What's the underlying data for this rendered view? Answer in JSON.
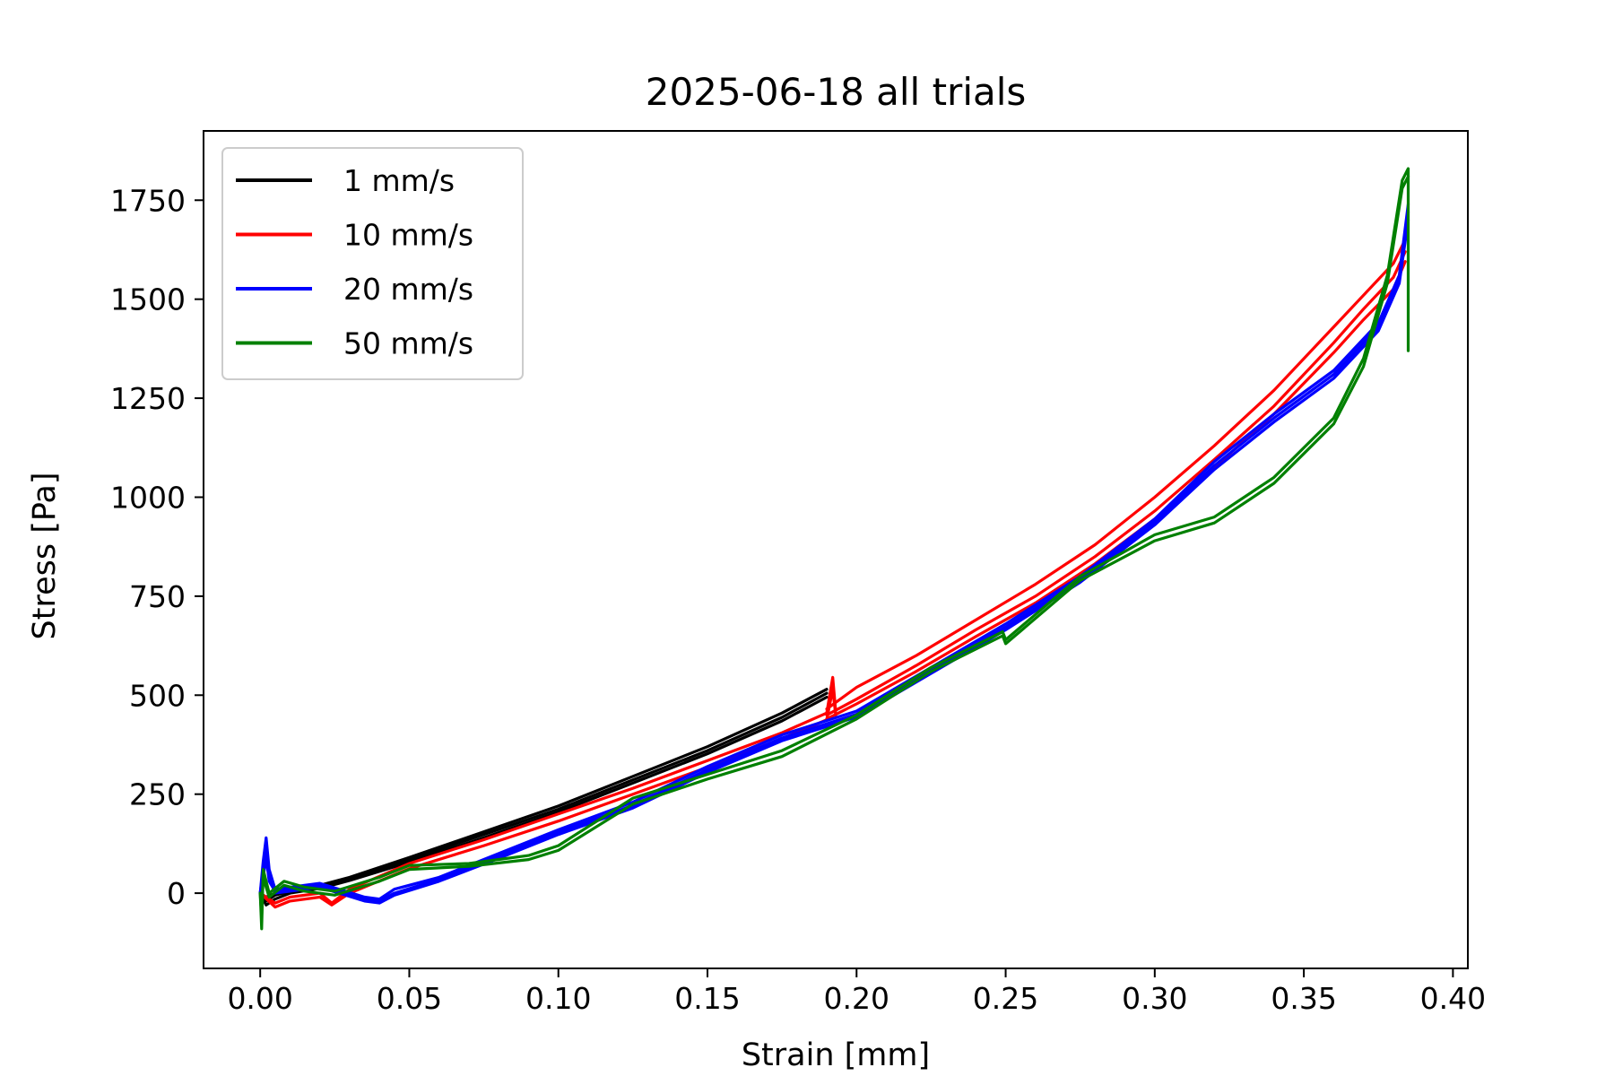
{
  "chart_data": {
    "type": "line",
    "title": "2025-06-18 all trials",
    "xlabel": "Strain [mm]",
    "ylabel": "Stress [Pa]",
    "xlim": [
      -0.019,
      0.405
    ],
    "ylim": [
      -190,
      1925
    ],
    "xticks": [
      0.0,
      0.05,
      0.1,
      0.15,
      0.2,
      0.25,
      0.3,
      0.35,
      0.4
    ],
    "xtick_labels": [
      "0.00",
      "0.05",
      "0.10",
      "0.15",
      "0.20",
      "0.25",
      "0.30",
      "0.35",
      "0.40"
    ],
    "yticks": [
      0,
      250,
      500,
      750,
      1000,
      1250,
      1500,
      1750
    ],
    "ytick_labels": [
      "0",
      "250",
      "500",
      "750",
      "1000",
      "1250",
      "1500",
      "1750"
    ],
    "grid": false,
    "legend_position": "upper-left",
    "legend": [
      {
        "label": "1 mm/s",
        "color": "#000000"
      },
      {
        "label": "10 mm/s",
        "color": "#ff0000"
      },
      {
        "label": "20 mm/s",
        "color": "#0000ff"
      },
      {
        "label": "50 mm/s",
        "color": "#008000"
      }
    ],
    "series": [
      {
        "name": "1 mm/s",
        "color": "#000000",
        "trial": 1,
        "x": [
          0.0,
          0.002,
          0.005,
          0.01,
          0.02,
          0.03,
          0.05,
          0.075,
          0.1,
          0.125,
          0.15,
          0.175,
          0.19
        ],
        "y": [
          0,
          -20,
          -5,
          5,
          20,
          40,
          90,
          155,
          220,
          295,
          370,
          455,
          515
        ]
      },
      {
        "name": "1 mm/s",
        "color": "#000000",
        "trial": 2,
        "x": [
          0.0,
          0.002,
          0.005,
          0.01,
          0.02,
          0.03,
          0.05,
          0.075,
          0.1,
          0.125,
          0.15,
          0.175,
          0.19
        ],
        "y": [
          0,
          -30,
          -15,
          0,
          12,
          32,
          78,
          140,
          205,
          278,
          352,
          435,
          495
        ]
      },
      {
        "name": "1 mm/s",
        "color": "#000000",
        "trial": 3,
        "x": [
          0.0,
          0.002,
          0.005,
          0.01,
          0.02,
          0.03,
          0.05,
          0.075,
          0.1,
          0.125,
          0.15,
          0.175,
          0.19
        ],
        "y": [
          0,
          -10,
          0,
          8,
          18,
          36,
          84,
          148,
          212,
          286,
          360,
          444,
          505
        ]
      },
      {
        "name": "10 mm/s",
        "color": "#ff0000",
        "trial": 1,
        "x": [
          0.0,
          0.005,
          0.01,
          0.02,
          0.024,
          0.03,
          0.05,
          0.075,
          0.1,
          0.125,
          0.15,
          0.175,
          0.19,
          0.192,
          0.193
        ],
        "y": [
          0,
          -25,
          -10,
          0,
          -25,
          10,
          75,
          135,
          200,
          265,
          335,
          405,
          455,
          545,
          460
        ]
      },
      {
        "name": "10 mm/s",
        "color": "#ff0000",
        "trial": 2,
        "x": [
          0.0,
          0.005,
          0.01,
          0.02,
          0.024,
          0.03,
          0.05,
          0.075,
          0.1,
          0.125,
          0.15,
          0.175,
          0.19,
          0.192,
          0.193
        ],
        "y": [
          0,
          -35,
          -20,
          -10,
          -30,
          0,
          62,
          120,
          182,
          250,
          318,
          390,
          438,
          515,
          450
        ]
      },
      {
        "name": "10 mm/s",
        "color": "#ff0000",
        "trial": 3,
        "x": [
          0.19,
          0.2,
          0.22,
          0.24,
          0.26,
          0.28,
          0.3,
          0.32,
          0.34,
          0.36,
          0.37,
          0.38,
          0.384
        ],
        "y": [
          465,
          520,
          600,
          690,
          780,
          880,
          1000,
          1130,
          1270,
          1430,
          1510,
          1590,
          1650
        ]
      },
      {
        "name": "10 mm/s",
        "color": "#ff0000",
        "trial": 4,
        "x": [
          0.19,
          0.2,
          0.22,
          0.24,
          0.26,
          0.28,
          0.3,
          0.32,
          0.34,
          0.36,
          0.37,
          0.38,
          0.384
        ],
        "y": [
          450,
          490,
          575,
          665,
          750,
          850,
          965,
          1095,
          1230,
          1390,
          1475,
          1555,
          1620
        ]
      },
      {
        "name": "10 mm/s",
        "color": "#ff0000",
        "trial": 5,
        "x": [
          0.19,
          0.2,
          0.22,
          0.24,
          0.26,
          0.28,
          0.3,
          0.32,
          0.34,
          0.36,
          0.37,
          0.38,
          0.384
        ],
        "y": [
          440,
          478,
          560,
          648,
          733,
          832,
          945,
          1075,
          1210,
          1365,
          1448,
          1525,
          1595
        ]
      },
      {
        "name": "20 mm/s",
        "color": "#0000ff",
        "trial": 1,
        "x": [
          0.0,
          0.001,
          0.002,
          0.003,
          0.005,
          0.01,
          0.02,
          0.035,
          0.04,
          0.045,
          0.06,
          0.08,
          0.1,
          0.125,
          0.15,
          0.175,
          0.2,
          0.225,
          0.25,
          0.275,
          0.3,
          0.32,
          0.34,
          0.36,
          0.375,
          0.382,
          0.385
        ],
        "y": [
          0,
          80,
          140,
          60,
          10,
          15,
          25,
          -10,
          -15,
          10,
          40,
          100,
          160,
          230,
          320,
          400,
          460,
          570,
          680,
          800,
          945,
          1090,
          1210,
          1320,
          1440,
          1560,
          1740
        ]
      },
      {
        "name": "20 mm/s",
        "color": "#0000ff",
        "trial": 2,
        "x": [
          0.0,
          0.001,
          0.002,
          0.003,
          0.005,
          0.01,
          0.02,
          0.035,
          0.04,
          0.045,
          0.06,
          0.08,
          0.1,
          0.125,
          0.15,
          0.175,
          0.2,
          0.225,
          0.25,
          0.275,
          0.3,
          0.32,
          0.34,
          0.36,
          0.375,
          0.382,
          0.385
        ],
        "y": [
          0,
          60,
          110,
          40,
          0,
          5,
          15,
          -20,
          -25,
          -5,
          30,
          88,
          148,
          215,
          305,
          385,
          445,
          555,
          665,
          785,
          930,
          1070,
          1190,
          1300,
          1420,
          1540,
          1700
        ]
      },
      {
        "name": "20 mm/s",
        "color": "#0000ff",
        "trial": 3,
        "x": [
          0.0,
          0.001,
          0.002,
          0.003,
          0.005,
          0.01,
          0.02,
          0.035,
          0.04,
          0.045,
          0.06,
          0.08,
          0.1,
          0.125,
          0.15,
          0.175,
          0.2,
          0.225,
          0.25,
          0.275,
          0.3,
          0.32,
          0.34,
          0.36,
          0.375,
          0.382,
          0.385
        ],
        "y": [
          0,
          40,
          90,
          30,
          5,
          10,
          20,
          -15,
          -20,
          0,
          35,
          94,
          154,
          222,
          312,
          392,
          452,
          562,
          672,
          792,
          938,
          1080,
          1200,
          1310,
          1430,
          1550,
          1720
        ]
      },
      {
        "name": "50 mm/s",
        "color": "#008000",
        "trial": 1,
        "x": [
          0.0,
          0.0005,
          0.001,
          0.003,
          0.008,
          0.015,
          0.025,
          0.04,
          0.05,
          0.07,
          0.09,
          0.1,
          0.125,
          0.15,
          0.175,
          0.2,
          0.225,
          0.249,
          0.25,
          0.275,
          0.3,
          0.32,
          0.34,
          0.36,
          0.37,
          0.378,
          0.383,
          0.385,
          0.385
        ],
        "y": [
          0,
          -90,
          60,
          0,
          30,
          15,
          5,
          40,
          70,
          75,
          95,
          120,
          240,
          300,
          360,
          450,
          570,
          660,
          640,
          800,
          905,
          950,
          1050,
          1200,
          1350,
          1560,
          1800,
          1830,
          1370
        ]
      },
      {
        "name": "50 mm/s",
        "color": "#008000",
        "trial": 2,
        "x": [
          0.0,
          0.0005,
          0.001,
          0.003,
          0.008,
          0.015,
          0.025,
          0.04,
          0.05,
          0.07,
          0.09,
          0.1,
          0.125,
          0.15,
          0.175,
          0.2,
          0.225,
          0.249,
          0.25,
          0.275,
          0.3,
          0.32,
          0.34,
          0.36,
          0.37,
          0.378,
          0.383,
          0.385
        ],
        "y": [
          0,
          -60,
          40,
          -10,
          20,
          5,
          -5,
          30,
          60,
          68,
          85,
          108,
          225,
          288,
          345,
          440,
          560,
          650,
          630,
          790,
          890,
          935,
          1035,
          1185,
          1330,
          1540,
          1780,
          1810
        ]
      }
    ]
  }
}
